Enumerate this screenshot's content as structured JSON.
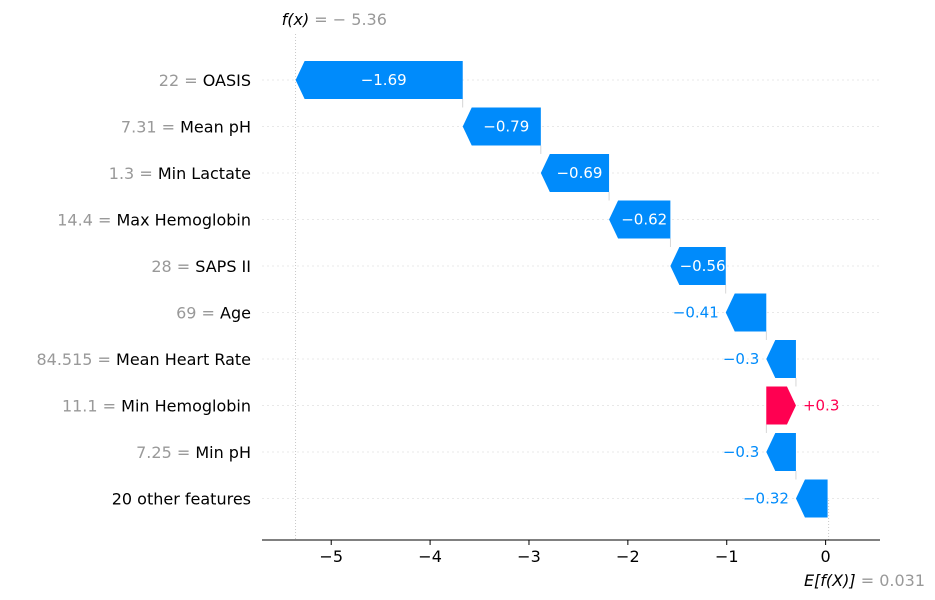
{
  "chart_data": {
    "type": "waterfall",
    "fx_label": "f(x) = −5.36",
    "fx_prefix": "f(x)",
    "fx_value_text": " = − 5.36",
    "fx_value": -5.36,
    "base_prefix": "E[f(X)]",
    "base_value_text": " = 0.031",
    "base_value": 0.031,
    "xlim": [
      -5.7,
      0.55
    ],
    "xticks": [
      -5,
      -4,
      -3,
      -2,
      -1,
      0
    ],
    "xtick_labels": [
      "−5",
      "−4",
      "−3",
      "−2",
      "−1",
      "0"
    ],
    "features": [
      {
        "value_text": "22 = ",
        "name": "OASIS",
        "contribution": -1.69,
        "label": "−1.69"
      },
      {
        "value_text": "7.31 = ",
        "name": "Mean pH",
        "contribution": -0.79,
        "label": "−0.79"
      },
      {
        "value_text": "1.3 = ",
        "name": "Min Lactate",
        "contribution": -0.69,
        "label": "−0.69"
      },
      {
        "value_text": "14.4 = ",
        "name": "Max Hemoglobin",
        "contribution": -0.62,
        "label": "−0.62"
      },
      {
        "value_text": "28 = ",
        "name": "SAPS II",
        "contribution": -0.56,
        "label": "−0.56"
      },
      {
        "value_text": "69 = ",
        "name": "Age",
        "contribution": -0.41,
        "label": "−0.41"
      },
      {
        "value_text": "84.515 = ",
        "name": "Mean Heart Rate",
        "contribution": -0.3,
        "label": "−0.3"
      },
      {
        "value_text": "11.1 = ",
        "name": "Min Hemoglobin",
        "contribution": 0.3,
        "label": "+0.3"
      },
      {
        "value_text": "7.25 = ",
        "name": "Min pH",
        "contribution": -0.3,
        "label": "−0.3"
      },
      {
        "value_text": "",
        "name": "20 other features",
        "contribution": -0.32,
        "label": "−0.32"
      }
    ],
    "colors": {
      "negative": "#008bfb",
      "positive": "#ff0051",
      "value_gray": "#999999",
      "grid": "#e8e8e8"
    }
  }
}
